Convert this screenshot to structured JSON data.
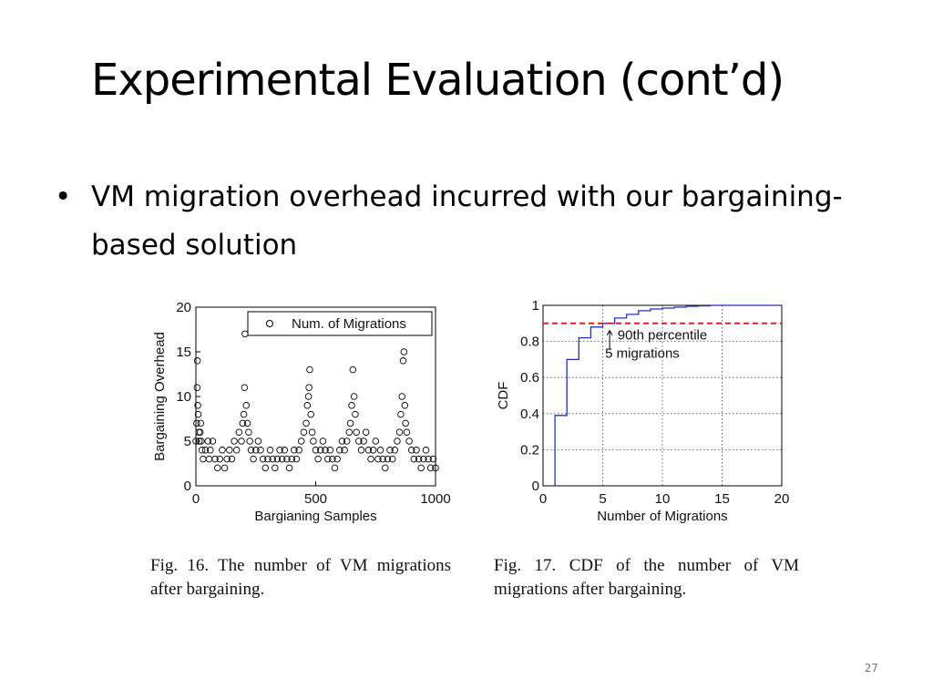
{
  "slide": {
    "title": "Experimental Evaluation (cont’d)",
    "bullet_symbol": "•",
    "bullet": "VM migration overhead incurred with our bargaining-based solution",
    "page_number": "27"
  },
  "captions": {
    "fig16": "Fig. 16. The number of VM migrations after bargaining.",
    "fig17": "Fig. 17. CDF of the number of VM migrations after bargaining."
  },
  "chart_data": [
    {
      "type": "scatter",
      "xlabel": "Bargianing Samples",
      "ylabel": "Bargaining Overhead",
      "xlim": [
        0,
        1000
      ],
      "ylim": [
        0,
        20
      ],
      "xticks": [
        "0",
        "500",
        "1000"
      ],
      "yticks": [
        "0",
        "5",
        "10",
        "15",
        "20"
      ],
      "legend": "top-right",
      "grid": false,
      "series": [
        {
          "name": "Num. of Migrations",
          "marker": "circle-open",
          "color": "#000000",
          "points": [
            [
              0,
              5
            ],
            [
              3,
              7
            ],
            [
              5,
              11
            ],
            [
              6,
              14
            ],
            [
              8,
              9
            ],
            [
              10,
              8
            ],
            [
              12,
              6
            ],
            [
              14,
              5
            ],
            [
              18,
              6
            ],
            [
              20,
              7
            ],
            [
              22,
              5
            ],
            [
              25,
              4
            ],
            [
              30,
              3
            ],
            [
              40,
              4
            ],
            [
              50,
              5
            ],
            [
              55,
              3
            ],
            [
              60,
              4
            ],
            [
              70,
              5
            ],
            [
              80,
              3
            ],
            [
              90,
              2
            ],
            [
              100,
              3
            ],
            [
              110,
              4
            ],
            [
              120,
              2
            ],
            [
              130,
              3
            ],
            [
              140,
              4
            ],
            [
              150,
              3
            ],
            [
              160,
              5
            ],
            [
              170,
              4
            ],
            [
              180,
              6
            ],
            [
              190,
              5
            ],
            [
              195,
              7
            ],
            [
              200,
              8
            ],
            [
              203,
              11
            ],
            [
              205,
              17
            ],
            [
              210,
              9
            ],
            [
              215,
              7
            ],
            [
              220,
              6
            ],
            [
              225,
              5
            ],
            [
              230,
              4
            ],
            [
              240,
              3
            ],
            [
              250,
              4
            ],
            [
              260,
              5
            ],
            [
              270,
              4
            ],
            [
              280,
              3
            ],
            [
              290,
              2
            ],
            [
              300,
              3
            ],
            [
              310,
              4
            ],
            [
              320,
              3
            ],
            [
              330,
              2
            ],
            [
              340,
              3
            ],
            [
              350,
              4
            ],
            [
              360,
              3
            ],
            [
              370,
              4
            ],
            [
              380,
              3
            ],
            [
              390,
              2
            ],
            [
              400,
              3
            ],
            [
              410,
              4
            ],
            [
              420,
              3
            ],
            [
              430,
              4
            ],
            [
              440,
              5
            ],
            [
              450,
              6
            ],
            [
              460,
              7
            ],
            [
              465,
              9
            ],
            [
              470,
              10
            ],
            [
              472,
              11
            ],
            [
              475,
              13
            ],
            [
              480,
              8
            ],
            [
              485,
              6
            ],
            [
              490,
              5
            ],
            [
              500,
              4
            ],
            [
              510,
              3
            ],
            [
              520,
              4
            ],
            [
              530,
              5
            ],
            [
              540,
              4
            ],
            [
              550,
              3
            ],
            [
              560,
              4
            ],
            [
              570,
              3
            ],
            [
              580,
              2
            ],
            [
              590,
              3
            ],
            [
              600,
              4
            ],
            [
              610,
              5
            ],
            [
              620,
              4
            ],
            [
              630,
              5
            ],
            [
              640,
              6
            ],
            [
              645,
              7
            ],
            [
              650,
              9
            ],
            [
              655,
              13
            ],
            [
              660,
              10
            ],
            [
              665,
              8
            ],
            [
              670,
              6
            ],
            [
              680,
              5
            ],
            [
              690,
              4
            ],
            [
              700,
              5
            ],
            [
              710,
              6
            ],
            [
              720,
              4
            ],
            [
              730,
              3
            ],
            [
              740,
              4
            ],
            [
              750,
              5
            ],
            [
              760,
              3
            ],
            [
              770,
              4
            ],
            [
              780,
              3
            ],
            [
              790,
              2
            ],
            [
              800,
              3
            ],
            [
              810,
              4
            ],
            [
              820,
              3
            ],
            [
              830,
              4
            ],
            [
              840,
              5
            ],
            [
              850,
              6
            ],
            [
              855,
              8
            ],
            [
              860,
              10
            ],
            [
              865,
              14
            ],
            [
              868,
              15
            ],
            [
              872,
              9
            ],
            [
              875,
              7
            ],
            [
              880,
              6
            ],
            [
              890,
              5
            ],
            [
              900,
              4
            ],
            [
              910,
              3
            ],
            [
              920,
              4
            ],
            [
              930,
              3
            ],
            [
              940,
              2
            ],
            [
              950,
              3
            ],
            [
              960,
              4
            ],
            [
              970,
              3
            ],
            [
              980,
              2
            ],
            [
              990,
              3
            ],
            [
              1000,
              2
            ]
          ]
        }
      ]
    },
    {
      "type": "line",
      "xlabel": "Number of Migrations",
      "ylabel": "CDF",
      "xlim": [
        0,
        20
      ],
      "ylim": [
        0,
        1
      ],
      "xticks": [
        "0",
        "5",
        "10",
        "15",
        "20"
      ],
      "yticks": [
        "0",
        "0.2",
        "0.4",
        "0.6",
        "0.8",
        "1"
      ],
      "grid": true,
      "series": [
        {
          "color": "#2233bb",
          "step": true,
          "x": [
            1,
            2,
            3,
            4,
            5,
            6,
            7,
            8,
            9,
            10,
            11,
            12,
            13,
            14,
            15,
            20
          ],
          "y": [
            0.39,
            0.7,
            0.82,
            0.88,
            0.9,
            0.93,
            0.95,
            0.97,
            0.98,
            0.985,
            0.99,
            0.995,
            0.997,
            1.0,
            1.0,
            1.0
          ]
        }
      ],
      "reference_line": {
        "y": 0.9,
        "color": "#e02020",
        "style": "dashed"
      },
      "annotations": [
        {
          "text": "90th percentile",
          "x": 10,
          "y": 0.81
        },
        {
          "text": "5 migrations",
          "x": 5.2,
          "y": 0.71,
          "arrow": true
        }
      ]
    }
  ]
}
